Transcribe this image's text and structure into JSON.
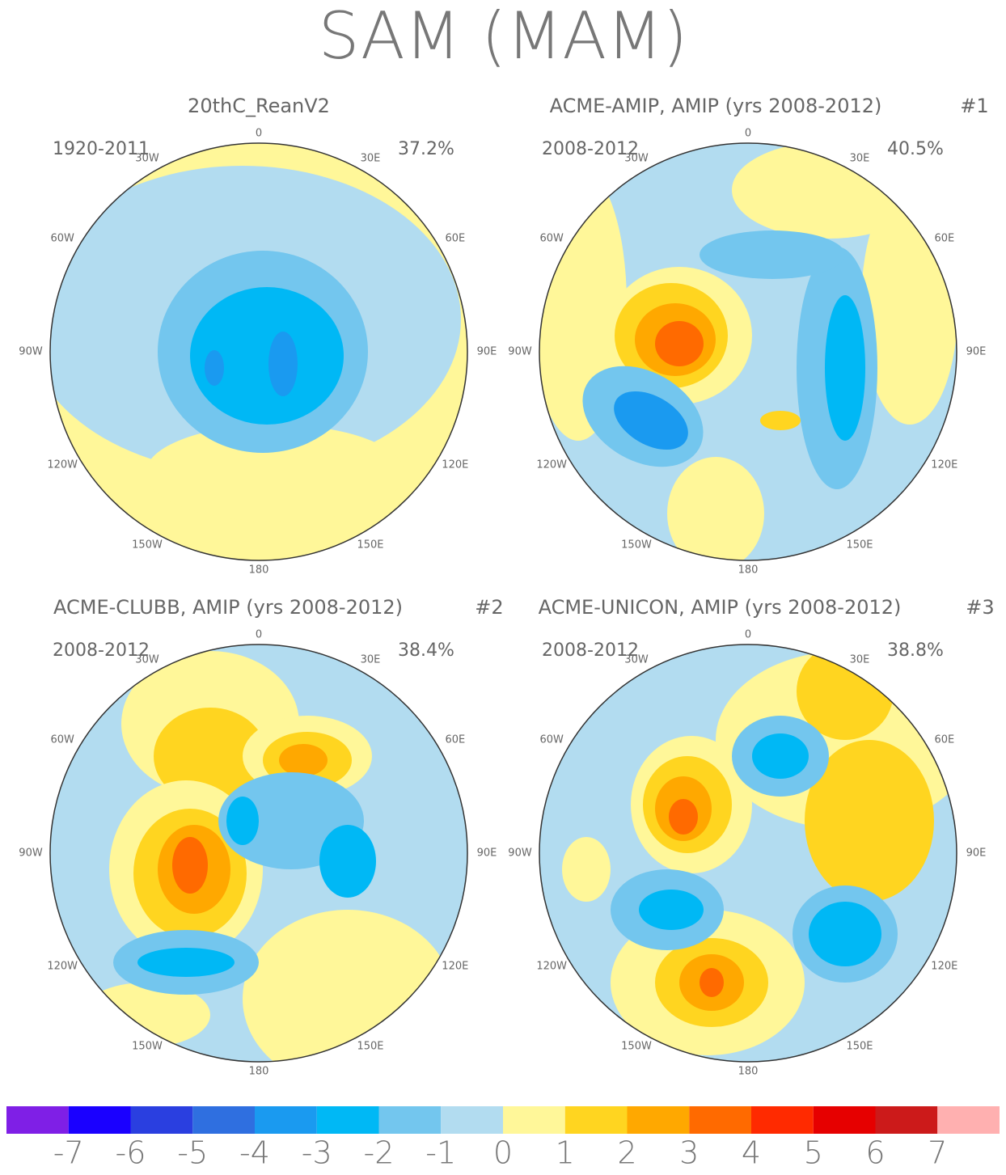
{
  "title": "SAM (MAM)",
  "panels": [
    {
      "title": "20thC_ReanV2",
      "period": "1920-2011",
      "percent": "37.2%"
    },
    {
      "title": "ACME-AMIP, AMIP (yrs 2008-2012)",
      "tag": "#1",
      "period": "2008-2012",
      "percent": "40.5%"
    },
    {
      "title": "ACME-CLUBB, AMIP (yrs 2008-2012)",
      "tag": "#2",
      "period": "2008-2012",
      "percent": "38.4%"
    },
    {
      "title": "ACME-UNICON, AMIP (yrs 2008-2012)",
      "tag": "#3",
      "period": "2008-2012",
      "percent": "38.8%"
    }
  ],
  "lon_labels": [
    "0",
    "30E",
    "60E",
    "90E",
    "120E",
    "150E",
    "180",
    "150W",
    "120W",
    "90W",
    "60W",
    "30W"
  ],
  "colorbar": {
    "colors": [
      "#7f1fe6",
      "#1a00ff",
      "#2a3fe0",
      "#2f6fe0",
      "#1a9af0",
      "#00b8f5",
      "#73c6ee",
      "#b2dcf0",
      "#fff799",
      "#ffd520",
      "#ffa800",
      "#ff6a00",
      "#ff2a00",
      "#e60000",
      "#cc1a1a",
      "#ffb0b0"
    ],
    "ticks": [
      -7,
      -6,
      -5,
      -4,
      -3,
      -2,
      -1,
      0,
      1,
      2,
      3,
      4,
      5,
      6,
      7
    ]
  }
}
